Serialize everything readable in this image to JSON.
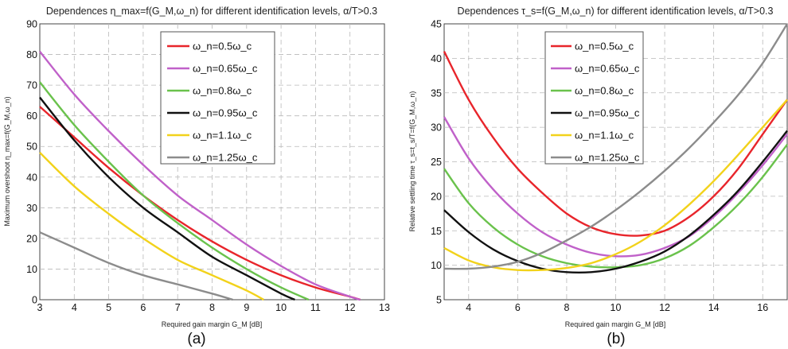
{
  "chart_data": [
    {
      "type": "line",
      "title": "Dependences η_max=f(G_M,ω_n) for different identification levels, α/T>0.3",
      "xlabel": "Required gain margin G_M [dB]",
      "ylabel": "Maximum overshoot η_max=f(G_M,ω_n)",
      "xlim": [
        3,
        13
      ],
      "ylim": [
        0,
        90
      ],
      "xticks": [
        3,
        4,
        5,
        6,
        7,
        8,
        9,
        10,
        11,
        12,
        13
      ],
      "yticks": [
        0,
        10,
        20,
        30,
        40,
        50,
        60,
        70,
        80,
        90
      ],
      "grid": true,
      "legend_position": "top-right",
      "caption": "(a)",
      "series": [
        {
          "name": "ω_n=0.5ω_c",
          "color": "#e8252b",
          "x": [
            3,
            4,
            5,
            6,
            7,
            8,
            9,
            10,
            11,
            12,
            12.3
          ],
          "y": [
            63,
            53,
            43,
            34,
            26,
            19,
            13,
            8,
            4,
            1,
            0
          ]
        },
        {
          "name": "ω_n=0.65ω_c",
          "color": "#c061c9",
          "x": [
            3,
            4,
            5,
            6,
            7,
            8,
            9,
            10,
            11,
            12,
            12.3
          ],
          "y": [
            81,
            67,
            55,
            44,
            34,
            26,
            18,
            11,
            5,
            1,
            0
          ]
        },
        {
          "name": "ω_n=0.8ω_c",
          "color": "#6ac24c",
          "x": [
            3,
            4,
            5,
            6,
            7,
            8,
            9,
            10,
            10.8
          ],
          "y": [
            71,
            57,
            45,
            34,
            25,
            17,
            10,
            4,
            0
          ]
        },
        {
          "name": "ω_n=0.95ω_c",
          "color": "#111111",
          "x": [
            3,
            4,
            5,
            6,
            7,
            8,
            9,
            10,
            10.4
          ],
          "y": [
            66,
            52,
            40,
            30,
            22,
            14,
            8,
            2,
            0
          ]
        },
        {
          "name": "ω_n=1.1ω_c",
          "color": "#f2d21b",
          "x": [
            3,
            4,
            5,
            6,
            7,
            8,
            9,
            9.5
          ],
          "y": [
            48,
            37,
            28,
            20,
            13,
            8,
            3,
            0
          ]
        },
        {
          "name": "ω_n=1.25ω_c",
          "color": "#8c8c8c",
          "x": [
            3,
            4,
            5,
            6,
            7,
            8,
            8.6
          ],
          "y": [
            22,
            17,
            12,
            8,
            5,
            2,
            0
          ]
        }
      ]
    },
    {
      "type": "line",
      "title": "Dependences τ_s=f(G_M,ω_n) for different identification levels, α/T>0.3",
      "xlabel": "Required gain margin G_M [dB]",
      "ylabel": "Relative settling time τ_s=t_s/T=f(G_M,ω_n)",
      "xlim": [
        3,
        17
      ],
      "ylim": [
        5,
        45
      ],
      "xticks": [
        4,
        6,
        8,
        10,
        12,
        14,
        16
      ],
      "yticks": [
        5,
        10,
        15,
        20,
        25,
        30,
        35,
        40,
        45
      ],
      "grid": true,
      "legend_position": "top-left",
      "caption": "(b)",
      "series": [
        {
          "name": "ω_n=0.5ω_c",
          "color": "#e8252b",
          "x": [
            3,
            4,
            5,
            6,
            7,
            8,
            9,
            10,
            11,
            12,
            13,
            14,
            15,
            16,
            17
          ],
          "y": [
            41,
            34,
            28.5,
            24,
            20.5,
            17.5,
            15.5,
            14.5,
            14.3,
            15,
            17,
            20,
            24,
            29,
            34
          ]
        },
        {
          "name": "ω_n=0.65ω_c",
          "color": "#c061c9",
          "x": [
            3,
            4,
            5,
            6,
            7,
            8,
            9,
            10,
            11,
            12,
            13,
            14,
            15,
            16,
            17
          ],
          "y": [
            31.5,
            25.5,
            21,
            17.5,
            14.8,
            13,
            11.8,
            11.3,
            11.5,
            12.5,
            14.2,
            17,
            20.5,
            24.5,
            29
          ]
        },
        {
          "name": "ω_n=0.8ω_c",
          "color": "#6ac24c",
          "x": [
            3,
            4,
            5,
            6,
            7,
            8,
            9,
            10,
            11,
            12,
            13,
            14,
            15,
            16,
            17
          ],
          "y": [
            24,
            19,
            15.5,
            13,
            11.3,
            10.3,
            9.8,
            9.7,
            10,
            11,
            12.8,
            15.5,
            18.8,
            22.8,
            27.5
          ]
        },
        {
          "name": "ω_n=0.95ω_c",
          "color": "#111111",
          "x": [
            3,
            4,
            5,
            6,
            7,
            8,
            9,
            10,
            11,
            12,
            13,
            14,
            15,
            16,
            17
          ],
          "y": [
            18,
            14.8,
            12.3,
            10.6,
            9.5,
            9,
            9,
            9.5,
            10.5,
            12,
            14.3,
            17.3,
            20.8,
            25,
            29.5
          ]
        },
        {
          "name": "ω_n=1.1ω_c",
          "color": "#f2d21b",
          "x": [
            3,
            4,
            5,
            6,
            7,
            8,
            9,
            10,
            11,
            12,
            13,
            14,
            15,
            16,
            17
          ],
          "y": [
            12.5,
            10.7,
            9.7,
            9.3,
            9.3,
            9.6,
            10.3,
            11.6,
            13.4,
            15.8,
            18.8,
            22.2,
            26,
            30,
            34
          ]
        },
        {
          "name": "ω_n=1.25ω_c",
          "color": "#8c8c8c",
          "x": [
            3,
            4,
            5,
            6,
            7,
            8,
            9,
            10,
            11,
            12,
            13,
            14,
            15,
            16,
            17
          ],
          "y": [
            9.5,
            9.5,
            9.8,
            10.5,
            11.8,
            13.6,
            15.6,
            18,
            20.7,
            23.7,
            27,
            30.7,
            34.7,
            39.3,
            45
          ]
        }
      ]
    }
  ]
}
